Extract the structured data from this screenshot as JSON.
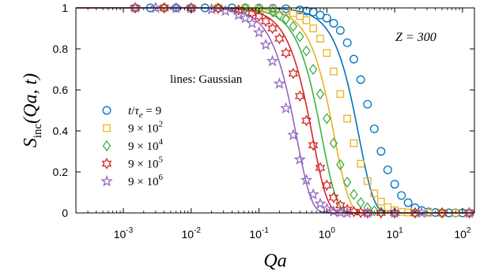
{
  "chart_data": {
    "type": "scatter",
    "xscale": "log",
    "xlim": [
      0.0002,
      150
    ],
    "ylim": [
      0,
      1
    ],
    "xlabel": "Qa",
    "ylabel_main": "S",
    "ylabel_sub": "inc",
    "ylabel_args": "(Qa, t)",
    "x_ticks": [
      {
        "mant": "10",
        "exp": "-3",
        "value": 0.001
      },
      {
        "mant": "10",
        "exp": "-2",
        "value": 0.01
      },
      {
        "mant": "10",
        "exp": "-1",
        "value": 0.1
      },
      {
        "mant": "10",
        "exp": "0",
        "value": 1
      },
      {
        "mant": "10",
        "exp": "1",
        "value": 10
      },
      {
        "mant": "10",
        "exp": "2",
        "value": 100
      }
    ],
    "y_ticks": [
      "0",
      "0.2",
      "0.4",
      "0.6",
      "0.8",
      "1"
    ],
    "annotations": {
      "z_label": "Z = 300",
      "lines_label": "lines: Gaussian"
    },
    "legend_placement": "center-left",
    "series": [
      {
        "legend": "t/τe = 9",
        "marker": "circle",
        "color": "#0072BD",
        "points": [
          [
            0.0015,
            1
          ],
          [
            0.0025,
            1
          ],
          [
            0.004,
            1
          ],
          [
            0.006,
            1
          ],
          [
            0.01,
            1
          ],
          [
            0.016,
            1
          ],
          [
            0.025,
            1
          ],
          [
            0.04,
            1
          ],
          [
            0.063,
            1
          ],
          [
            0.1,
            0.999
          ],
          [
            0.16,
            0.998
          ],
          [
            0.25,
            0.996
          ],
          [
            0.4,
            0.99
          ],
          [
            0.5,
            0.985
          ],
          [
            0.63,
            0.98
          ],
          [
            0.8,
            0.965
          ],
          [
            1.0,
            0.95
          ],
          [
            1.26,
            0.925
          ],
          [
            1.58,
            0.89
          ],
          [
            2.0,
            0.83
          ],
          [
            2.5,
            0.75
          ],
          [
            3.16,
            0.65
          ],
          [
            3.98,
            0.53
          ],
          [
            5.0,
            0.41
          ],
          [
            6.3,
            0.3
          ],
          [
            7.9,
            0.21
          ],
          [
            10,
            0.14
          ],
          [
            12.6,
            0.085
          ],
          [
            15.8,
            0.05
          ],
          [
            20,
            0.025
          ],
          [
            25,
            0.012
          ],
          [
            31.6,
            0.005
          ],
          [
            40,
            0.002
          ],
          [
            50,
            0
          ],
          [
            63,
            0
          ],
          [
            79,
            0
          ],
          [
            100,
            0
          ],
          [
            126,
            0
          ]
        ],
        "gauss_scale": 3.0
      },
      {
        "legend": "9 × 10^2",
        "marker": "square",
        "color": "#EDB120",
        "points": [
          [
            0.0015,
            1
          ],
          [
            0.004,
            1
          ],
          [
            0.01,
            1
          ],
          [
            0.025,
            1
          ],
          [
            0.063,
            0.999
          ],
          [
            0.1,
            0.997
          ],
          [
            0.16,
            0.993
          ],
          [
            0.25,
            0.985
          ],
          [
            0.32,
            0.975
          ],
          [
            0.4,
            0.96
          ],
          [
            0.5,
            0.94
          ],
          [
            0.63,
            0.9
          ],
          [
            0.8,
            0.85
          ],
          [
            1.0,
            0.78
          ],
          [
            1.26,
            0.69
          ],
          [
            1.58,
            0.58
          ],
          [
            2.0,
            0.46
          ],
          [
            2.5,
            0.34
          ],
          [
            3.16,
            0.24
          ],
          [
            3.98,
            0.155
          ],
          [
            5.0,
            0.095
          ],
          [
            6.3,
            0.055
          ],
          [
            7.9,
            0.028
          ],
          [
            10,
            0.013
          ],
          [
            12.6,
            0.005
          ],
          [
            15.8,
            0.002
          ],
          [
            20,
            0
          ],
          [
            31.6,
            0
          ],
          [
            50,
            0
          ],
          [
            79,
            0
          ],
          [
            126,
            0
          ]
        ],
        "gauss_scale": 1.3
      },
      {
        "legend": "9 × 10^4",
        "marker": "diamond",
        "color": "#3CB043",
        "points": [
          [
            0.0015,
            1
          ],
          [
            0.004,
            1
          ],
          [
            0.01,
            1
          ],
          [
            0.025,
            0.999
          ],
          [
            0.063,
            0.997
          ],
          [
            0.1,
            0.993
          ],
          [
            0.16,
            0.98
          ],
          [
            0.2,
            0.965
          ],
          [
            0.25,
            0.945
          ],
          [
            0.32,
            0.91
          ],
          [
            0.4,
            0.86
          ],
          [
            0.5,
            0.79
          ],
          [
            0.63,
            0.7
          ],
          [
            0.8,
            0.58
          ],
          [
            1.0,
            0.46
          ],
          [
            1.26,
            0.34
          ],
          [
            1.58,
            0.235
          ],
          [
            2.0,
            0.15
          ],
          [
            2.5,
            0.09
          ],
          [
            3.16,
            0.05
          ],
          [
            3.98,
            0.025
          ],
          [
            5.0,
            0.01
          ],
          [
            6.3,
            0.004
          ],
          [
            10,
            0
          ],
          [
            20,
            0
          ],
          [
            50,
            0
          ],
          [
            126,
            0
          ]
        ],
        "gauss_scale": 0.85
      },
      {
        "legend": "9 × 10^5",
        "marker": "hexagram",
        "color": "#D62728",
        "points": [
          [
            0.0015,
            1
          ],
          [
            0.004,
            1
          ],
          [
            0.01,
            0.999
          ],
          [
            0.025,
            0.997
          ],
          [
            0.05,
            0.99
          ],
          [
            0.079,
            0.975
          ],
          [
            0.1,
            0.96
          ],
          [
            0.126,
            0.935
          ],
          [
            0.158,
            0.9
          ],
          [
            0.2,
            0.85
          ],
          [
            0.25,
            0.78
          ],
          [
            0.32,
            0.68
          ],
          [
            0.4,
            0.57
          ],
          [
            0.5,
            0.45
          ],
          [
            0.63,
            0.33
          ],
          [
            0.8,
            0.22
          ],
          [
            1.0,
            0.135
          ],
          [
            1.26,
            0.075
          ],
          [
            1.58,
            0.037
          ],
          [
            2.0,
            0.016
          ],
          [
            2.5,
            0.006
          ],
          [
            3.16,
            0.002
          ],
          [
            4,
            0
          ],
          [
            6.3,
            0
          ],
          [
            10,
            0
          ],
          [
            20,
            0
          ],
          [
            50,
            0
          ],
          [
            126,
            0
          ]
        ],
        "gauss_scale": 0.62
      },
      {
        "legend": "9 × 10^6",
        "marker": "pentagram",
        "color": "#9467BD",
        "points": [
          [
            0.0015,
            1
          ],
          [
            0.003,
            1
          ],
          [
            0.006,
            0.999
          ],
          [
            0.01,
            0.998
          ],
          [
            0.02,
            0.993
          ],
          [
            0.032,
            0.985
          ],
          [
            0.05,
            0.965
          ],
          [
            0.063,
            0.95
          ],
          [
            0.079,
            0.925
          ],
          [
            0.1,
            0.88
          ],
          [
            0.126,
            0.82
          ],
          [
            0.158,
            0.74
          ],
          [
            0.2,
            0.63
          ],
          [
            0.25,
            0.51
          ],
          [
            0.32,
            0.38
          ],
          [
            0.4,
            0.26
          ],
          [
            0.5,
            0.16
          ],
          [
            0.63,
            0.09
          ],
          [
            0.8,
            0.045
          ],
          [
            1.0,
            0.02
          ],
          [
            1.26,
            0.007
          ],
          [
            1.58,
            0.002
          ],
          [
            2,
            0
          ],
          [
            4,
            0
          ],
          [
            10,
            0
          ],
          [
            25,
            0
          ],
          [
            126,
            0
          ]
        ],
        "gauss_scale": 0.36
      }
    ]
  }
}
